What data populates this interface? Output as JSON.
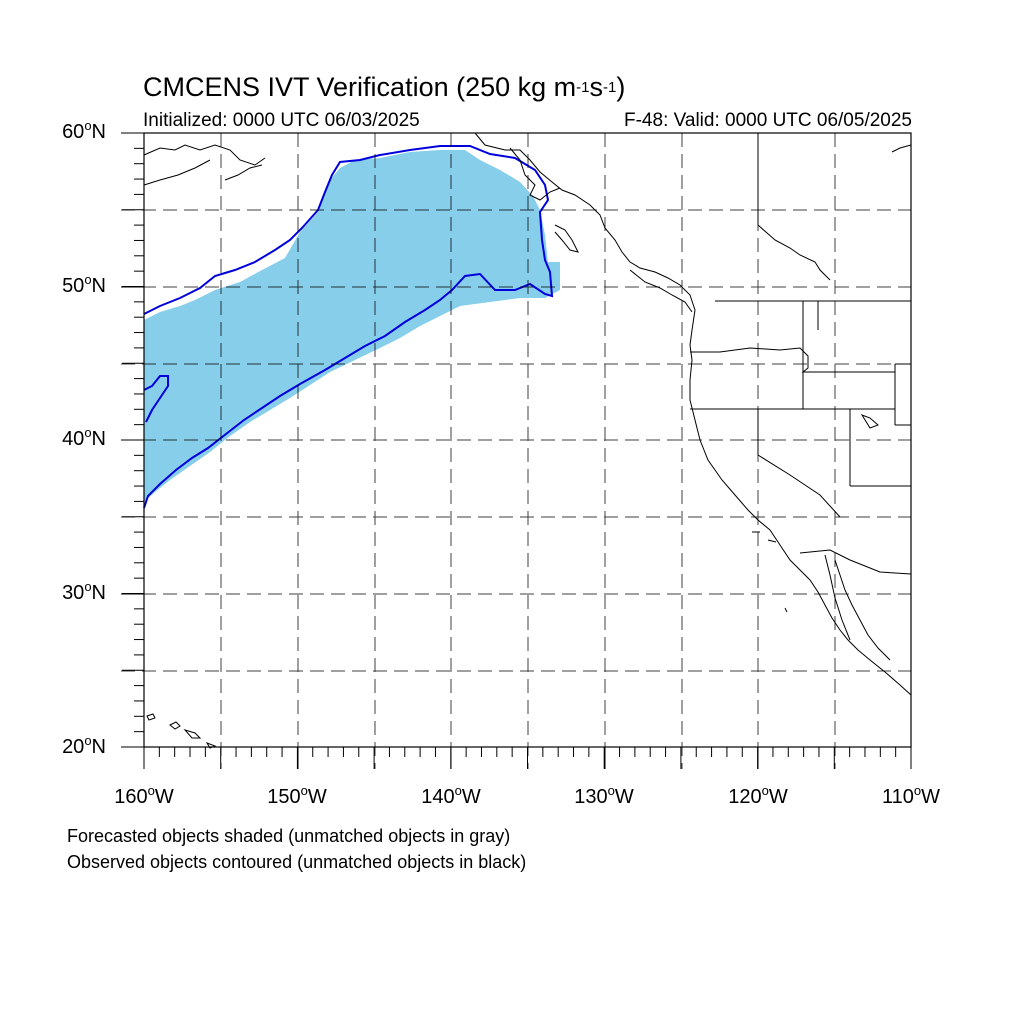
{
  "title": {
    "prefix": "CMCENS IVT Verification (250 kg m",
    "exp1": "-1",
    "mid": "s",
    "exp2": "-1",
    "suffix": ")"
  },
  "initialized": "Initialized: 0000 UTC 06/03/2025",
  "valid": "F-48: Valid: 0000 UTC 06/05/2025",
  "y_axis": [
    {
      "value": "60",
      "unit": "o",
      "hem": "N"
    },
    {
      "value": "50",
      "unit": "o",
      "hem": "N"
    },
    {
      "value": "40",
      "unit": "o",
      "hem": "N"
    },
    {
      "value": "30",
      "unit": "o",
      "hem": "N"
    },
    {
      "value": "20",
      "unit": "o",
      "hem": "N"
    }
  ],
  "x_axis": [
    {
      "value": "160",
      "unit": "o",
      "hem": "W"
    },
    {
      "value": "150",
      "unit": "o",
      "hem": "W"
    },
    {
      "value": "140",
      "unit": "o",
      "hem": "W"
    },
    {
      "value": "130",
      "unit": "o",
      "hem": "W"
    },
    {
      "value": "120",
      "unit": "o",
      "hem": "W"
    },
    {
      "value": "110",
      "unit": "o",
      "hem": "W"
    }
  ],
  "footer": {
    "line1": "Forecasted objects shaded (unmatched objects in gray)",
    "line2": "Observed objects contoured (unmatched objects in black)"
  },
  "map": {
    "lon_range": [
      -160,
      -110
    ],
    "lat_range": [
      20,
      60
    ],
    "colors": {
      "forecast_fill": "#87ceeb",
      "observed_contour": "#0000dd",
      "coastline": "#000000",
      "grid": "#000000"
    }
  }
}
